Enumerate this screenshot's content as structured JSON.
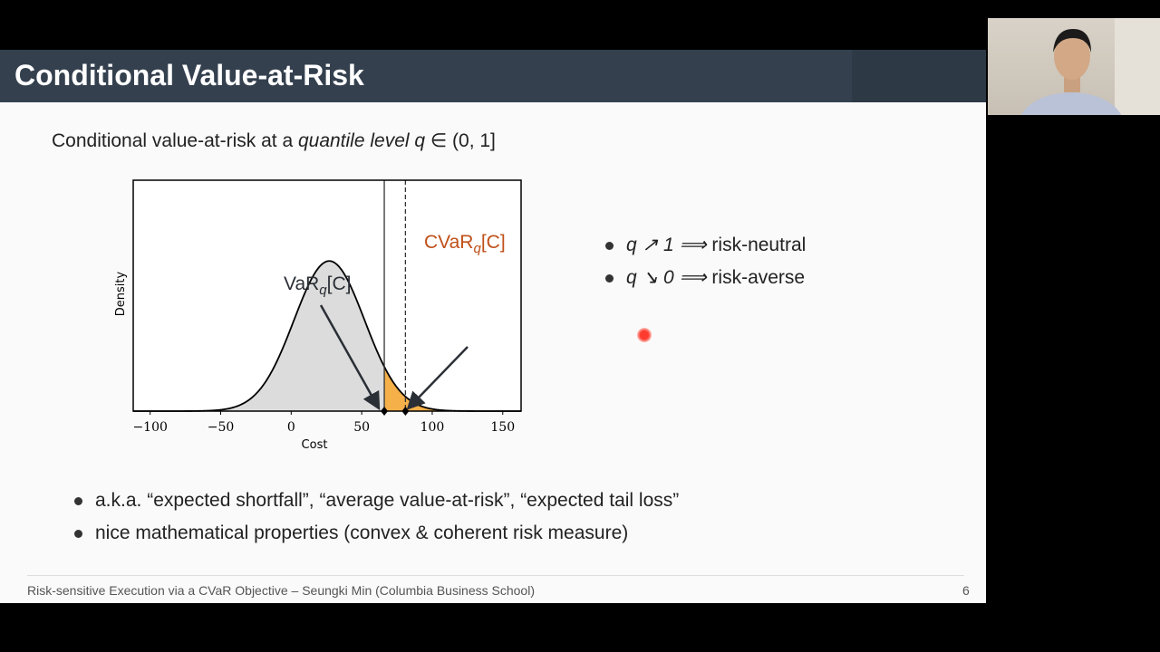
{
  "slide": {
    "title": "Conditional Value-at-Risk",
    "intro_prefix": "Conditional value-at-risk at a ",
    "intro_italic": "quantile level q",
    "intro_suffix": " ∈ (0, 1]",
    "right_bullets": [
      {
        "math": "q ↗ 1  ⟹",
        "text": "risk-neutral"
      },
      {
        "math": "q ↘ 0  ⟹",
        "text": "risk-averse"
      }
    ],
    "bottom_bullets": [
      "a.k.a. “expected shortfall”, “average value-at-risk”, “expected tail loss”",
      "nice mathematical properties (convex & coherent risk measure)"
    ],
    "footer": "Risk-sensitive Execution via a CVaR Objective  –  Seungki Min  (Columbia Business School)",
    "page_number": "6"
  },
  "chart_data": {
    "type": "area",
    "xlabel": "Cost",
    "ylabel": "Density",
    "xlim": [
      -112,
      163
    ],
    "x_ticks": [
      "−100",
      "−50",
      "0",
      "50",
      "100",
      "150"
    ],
    "x_tick_values": [
      -100,
      -50,
      0,
      50,
      100,
      150
    ],
    "distribution": {
      "kind": "normal",
      "mean": 27,
      "sd": 25
    },
    "var_value": 66,
    "cvar_value": 81,
    "var_label": "VaR_q[C]",
    "cvar_label": "CVaR_q[C]",
    "colors": {
      "body": "#dcdcdc",
      "tail": "#f5b04a",
      "cvar_label": "#c0501a"
    }
  }
}
